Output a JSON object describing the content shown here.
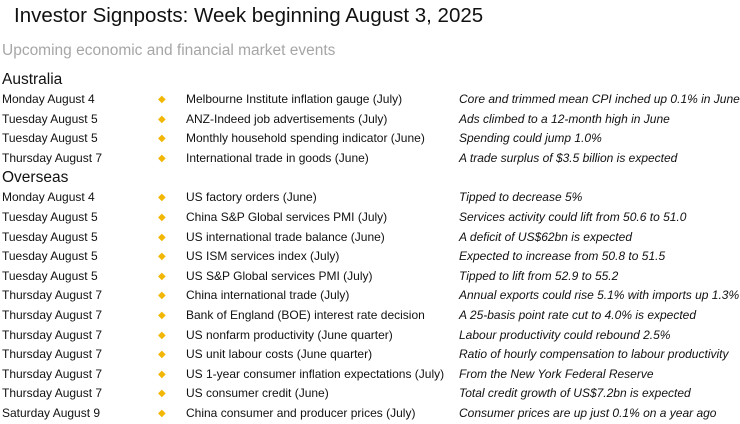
{
  "title": "Investor Signposts: Week beginning August 3, 2025",
  "subtitle": "Upcoming economic and financial market events",
  "accent_color": "#f2b705",
  "bullet_icon": "yellow-diamond-icon",
  "sections": [
    {
      "heading": "Australia",
      "rows": [
        {
          "date": "Monday August 4",
          "event": "Melbourne Institute inflation gauge (July)",
          "note": "Core and trimmed mean CPI inched up 0.1% in June"
        },
        {
          "date": "Tuesday August 5",
          "event": "ANZ-Indeed job advertisements (July)",
          "note": "Ads climbed to a 12-month high in June"
        },
        {
          "date": "Tuesday August 5",
          "event": "Monthly household spending indicator (June)",
          "note": "Spending could jump 1.0%"
        },
        {
          "date": "Thursday August 7",
          "event": "International trade in goods (June)",
          "note": "A trade surplus of $3.5 billion is expected"
        }
      ]
    },
    {
      "heading": "Overseas",
      "rows": [
        {
          "date": "Monday August 4",
          "event": "US factory orders (June)",
          "note": "Tipped to decrease 5%"
        },
        {
          "date": "Tuesday August 5",
          "event": "China S&P Global services PMI (July)",
          "note": "Services activity could lift from 50.6 to 51.0"
        },
        {
          "date": "Tuesday August 5",
          "event": "US international trade balance (June)",
          "note": "A deficit of US$62bn is expected"
        },
        {
          "date": "Tuesday August 5",
          "event": "US ISM services index (July)",
          "note": "Expected to increase from 50.8 to 51.5"
        },
        {
          "date": "Tuesday August 5",
          "event": "US S&P Global services PMI (July)",
          "note": "Tipped to lift from 52.9 to 55.2"
        },
        {
          "date": "Thursday August 7",
          "event": "China international trade (July)",
          "note": "Annual exports could rise 5.1% with imports up 1.3%"
        },
        {
          "date": "Thursday August 7",
          "event": "Bank of England (BOE) interest rate decision",
          "note": "A 25-basis point rate cut to 4.0% is expected"
        },
        {
          "date": "Thursday August 7",
          "event": "US nonfarm productivity (June quarter)",
          "note": "Labour productivity could rebound 2.5%"
        },
        {
          "date": "Thursday August 7",
          "event": "US unit labour costs (June quarter)",
          "note": "Ratio of hourly compensation to labour productivity"
        },
        {
          "date": "Thursday August 7",
          "event": "US 1-year consumer inflation expectations (July)",
          "note": "From the New York Federal Reserve"
        },
        {
          "date": "Thursday August 7",
          "event": "US consumer credit (June)",
          "note": "Total credit growth of US$7.2bn is expected"
        },
        {
          "date": "Saturday August 9",
          "event": "China consumer and producer prices (July)",
          "note": "Consumer prices are up just 0.1% on a year ago"
        }
      ]
    }
  ]
}
